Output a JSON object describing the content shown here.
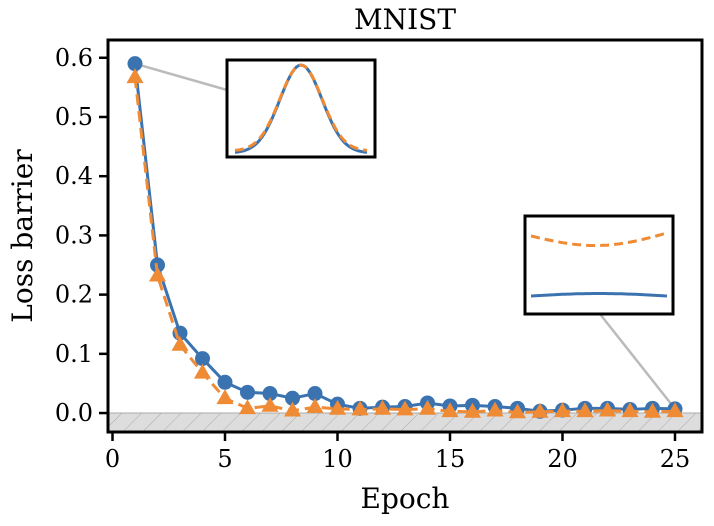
{
  "chart_data": {
    "type": "line",
    "title": "MNIST",
    "xlabel": "Epoch",
    "ylabel": "Loss barrier",
    "xlim": [
      -0.2,
      26.2
    ],
    "ylim": [
      -0.032,
      0.63
    ],
    "xticks": [
      0,
      5,
      10,
      15,
      20,
      25
    ],
    "yticks": [
      0.0,
      0.1,
      0.2,
      0.3,
      0.4,
      0.5,
      0.6
    ],
    "xtick_labels": [
      "0",
      "5",
      "10",
      "15",
      "20",
      "25"
    ],
    "ytick_labels": [
      "0.0",
      "0.1",
      "0.2",
      "0.3",
      "0.4",
      "0.5",
      "0.6"
    ],
    "grid": false,
    "shaded_region": {
      "y_from": -0.032,
      "y_to": 0.0,
      "fill": "#dddddd",
      "hatch": true
    },
    "x": [
      1,
      2,
      3,
      4,
      5,
      6,
      7,
      8,
      9,
      10,
      11,
      12,
      13,
      14,
      15,
      16,
      17,
      18,
      19,
      20,
      21,
      22,
      23,
      24,
      25
    ],
    "series": [
      {
        "color": "#3a73b0",
        "marker": "circle",
        "line_style": "solid",
        "values": [
          0.59,
          0.25,
          0.135,
          0.092,
          0.052,
          0.035,
          0.033,
          0.025,
          0.033,
          0.015,
          0.008,
          0.01,
          0.011,
          0.017,
          0.012,
          0.013,
          0.011,
          0.008,
          0.003,
          0.005,
          0.008,
          0.008,
          0.006,
          0.008,
          0.007
        ]
      },
      {
        "color": "#ef8a35",
        "marker": "triangle",
        "line_style": "dashed",
        "values": [
          0.567,
          0.232,
          0.115,
          0.068,
          0.025,
          0.008,
          0.012,
          0.004,
          0.01,
          0.007,
          0.006,
          0.007,
          0.006,
          0.007,
          0.003,
          0.002,
          0.004,
          0.001,
          0.002,
          0.003,
          0.003,
          0.004,
          0.003,
          0.002,
          0.003
        ]
      }
    ],
    "insets": [
      {
        "anchor_epoch": 1,
        "shape": "bell",
        "connector_color": "#bbbbbb"
      },
      {
        "anchor_epoch": 25,
        "shape": "flat",
        "connector_color": "#bbbbbb"
      }
    ]
  }
}
